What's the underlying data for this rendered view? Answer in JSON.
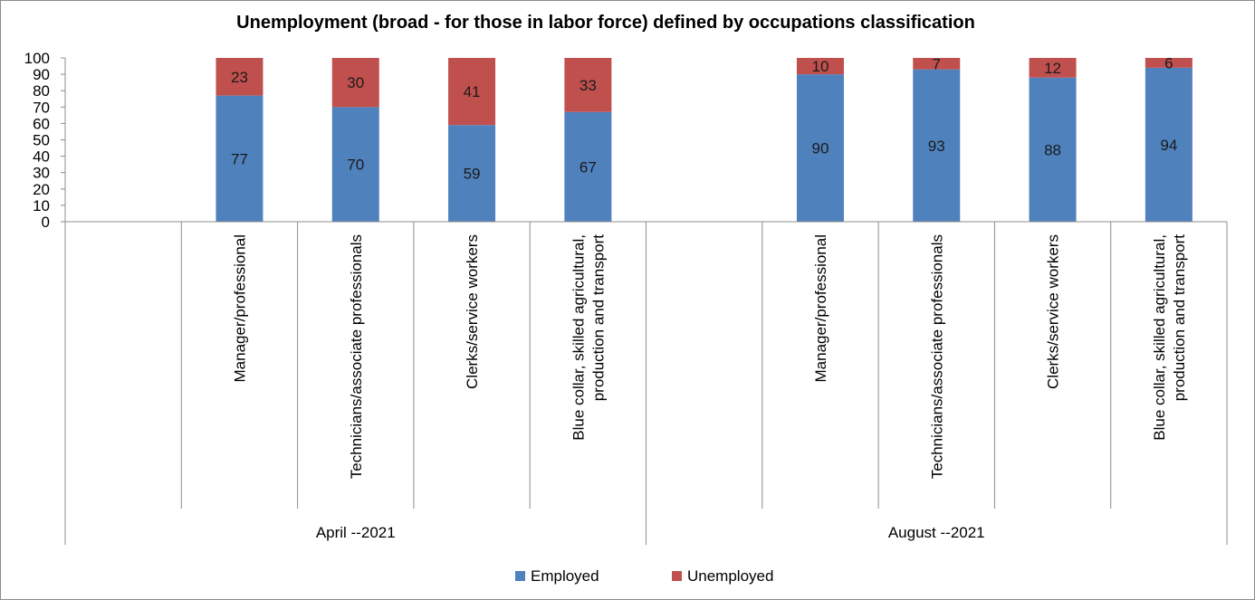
{
  "chart_data": {
    "type": "bar",
    "stacked": true,
    "title": "Unemployment (broad - for those in labor force) defined by occupations classification",
    "xlabel": "",
    "ylabel": "",
    "ylim": [
      0,
      100
    ],
    "yticks": [
      "0",
      "10",
      "20",
      "30",
      "40",
      "50",
      "60",
      "70",
      "80",
      "90",
      "100"
    ],
    "grid": false,
    "legend_position": "bottom",
    "groups": [
      {
        "name": "April --2021",
        "categories": [
          "Manager/professional",
          "Technicians/associate professionals",
          "Clerks/service workers",
          "Blue collar, skilled agricultural, production and transport"
        ],
        "category_lines": [
          [
            "Manager/professional"
          ],
          [
            "Technicians/associate professionals"
          ],
          [
            "Clerks/service workers"
          ],
          [
            "Blue collar, skilled agricultural,",
            "production and transport"
          ]
        ]
      },
      {
        "name": "August --2021",
        "categories": [
          "Manager/professional",
          "Technicians/associate professionals",
          "Clerks/service workers",
          "Blue collar, skilled agricultural, production and transport"
        ],
        "category_lines": [
          [
            "Manager/professional"
          ],
          [
            "Technicians/associate professionals"
          ],
          [
            "Clerks/service workers"
          ],
          [
            "Blue collar, skilled agricultural,",
            "production and transport"
          ]
        ]
      }
    ],
    "series": [
      {
        "name": "Employed",
        "color": "#4f81bd",
        "values": [
          77,
          70,
          59,
          67,
          90,
          93,
          88,
          94
        ]
      },
      {
        "name": "Unemployed",
        "color": "#c0504d",
        "values": [
          23,
          30,
          41,
          33,
          10,
          7,
          12,
          6
        ]
      }
    ]
  }
}
